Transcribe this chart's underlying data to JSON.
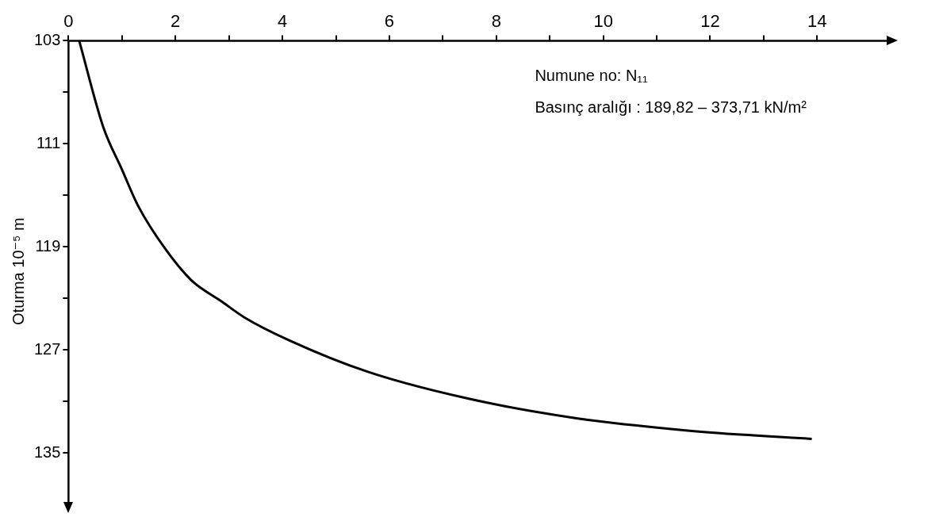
{
  "chart_data": {
    "type": "line",
    "ylabel": "Oturma 10⁻⁵ m",
    "annotations": [
      "Numune no: N₁₁",
      "Basınç aralığı : 189,82 – 373,71 kN/m²"
    ],
    "series": [
      {
        "color": "#000000",
        "x": [
          0.2,
          0.65,
          1.0,
          1.3,
          1.8,
          2.3,
          2.85,
          3.3,
          4.1,
          5.6,
          7.5,
          9.5,
          11.7,
          13.9
        ],
        "values": [
          103,
          109.7,
          113,
          115.8,
          119.1,
          121.6,
          123.2,
          124.5,
          126.2,
          128.7,
          130.8,
          132.3,
          133.3,
          133.9
        ]
      }
    ],
    "xlim": [
      0,
      15.3
    ],
    "ylim": [
      138.8,
      103
    ],
    "xticks": [
      0,
      {
        "value": 1,
        "label": null
      },
      2,
      {
        "value": 3,
        "label": null
      },
      4,
      {
        "value": 5,
        "label": null
      },
      6,
      {
        "value": 7,
        "label": null
      },
      8,
      {
        "value": 9,
        "label": null
      },
      10,
      {
        "value": 11,
        "label": null
      },
      12,
      {
        "value": 13,
        "label": null
      },
      14
    ],
    "yticks": [
      103,
      {
        "value": 107,
        "label": null
      },
      111,
      {
        "value": 115,
        "label": null
      },
      119,
      {
        "value": 123,
        "label": null
      },
      127,
      {
        "value": 131,
        "label": null
      },
      135
    ],
    "grid": false,
    "legend": false,
    "marker": "none",
    "line_style": "solid"
  }
}
